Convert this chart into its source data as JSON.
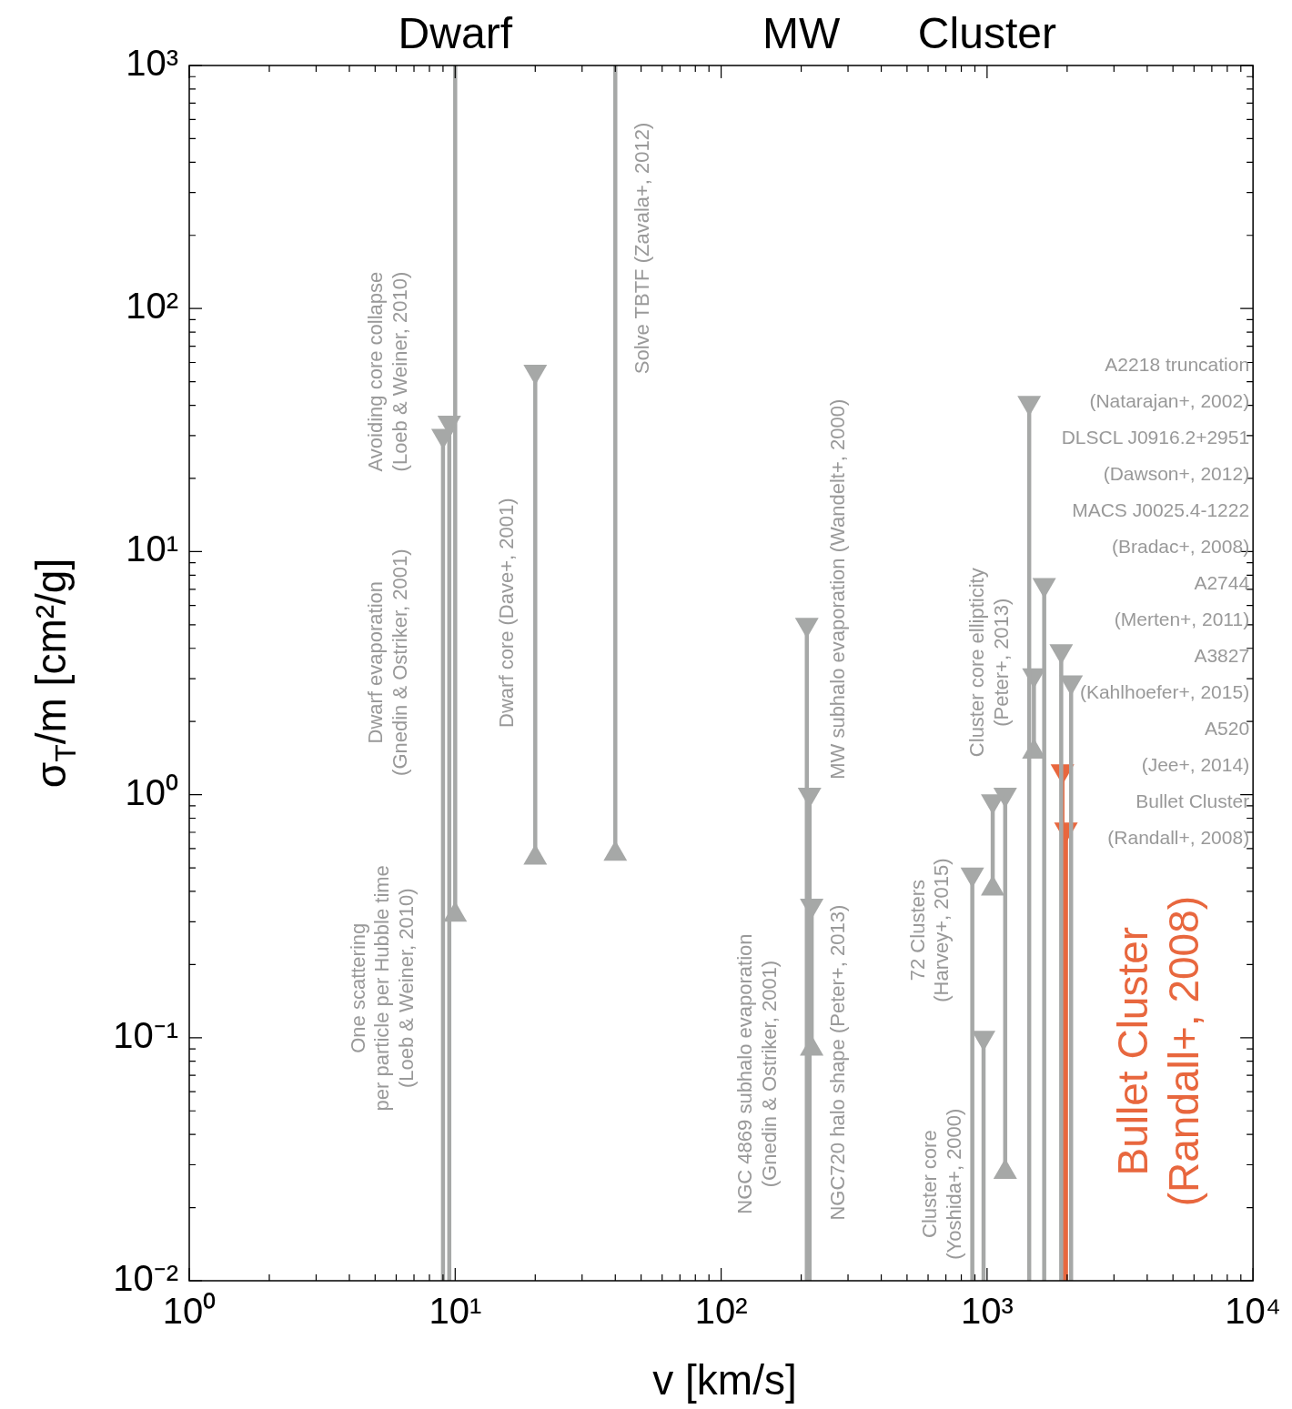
{
  "chart_data": {
    "type": "line",
    "xlabel": "v [km/s]",
    "ylabel": "σ$_{T}$/m [cm²/g]",
    "log": "xy",
    "grid": false,
    "marker": "triangle",
    "xlim": [
      1,
      10000
    ],
    "ylim": [
      0.01,
      1000
    ],
    "xticks": [
      {
        "value": 1,
        "label": "10⁰"
      },
      {
        "value": 2,
        "label": null
      },
      {
        "value": 3,
        "label": null
      },
      {
        "value": 4,
        "label": null
      },
      {
        "value": 5,
        "label": null
      },
      {
        "value": 6,
        "label": null
      },
      {
        "value": 7,
        "label": null
      },
      {
        "value": 8,
        "label": null
      },
      {
        "value": 9,
        "label": null
      },
      {
        "value": 10,
        "label": "10¹"
      },
      {
        "value": 20,
        "label": null
      },
      {
        "value": 30,
        "label": null
      },
      {
        "value": 40,
        "label": null
      },
      {
        "value": 50,
        "label": null
      },
      {
        "value": 60,
        "label": null
      },
      {
        "value": 70,
        "label": null
      },
      {
        "value": 80,
        "label": null
      },
      {
        "value": 90,
        "label": null
      },
      {
        "value": 100,
        "label": "10²"
      },
      {
        "value": 200,
        "label": null
      },
      {
        "value": 300,
        "label": null
      },
      {
        "value": 400,
        "label": null
      },
      {
        "value": 500,
        "label": null
      },
      {
        "value": 600,
        "label": null
      },
      {
        "value": 700,
        "label": null
      },
      {
        "value": 800,
        "label": null
      },
      {
        "value": 900,
        "label": null
      },
      {
        "value": 1000,
        "label": "10³"
      },
      {
        "value": 2000,
        "label": null
      },
      {
        "value": 3000,
        "label": null
      },
      {
        "value": 4000,
        "label": null
      },
      {
        "value": 5000,
        "label": null
      },
      {
        "value": 6000,
        "label": null
      },
      {
        "value": 7000,
        "label": null
      },
      {
        "value": 8000,
        "label": null
      },
      {
        "value": 9000,
        "label": null
      },
      {
        "value": 10000,
        "label": "10⁴"
      }
    ],
    "yticks": [
      {
        "value": 0.01,
        "label": "10⁻²"
      },
      {
        "value": 0.02,
        "label": null
      },
      {
        "value": 0.03,
        "label": null
      },
      {
        "value": 0.04,
        "label": null
      },
      {
        "value": 0.05,
        "label": null
      },
      {
        "value": 0.06,
        "label": null
      },
      {
        "value": 0.07,
        "label": null
      },
      {
        "value": 0.08,
        "label": null
      },
      {
        "value": 0.09,
        "label": null
      },
      {
        "value": 0.1,
        "label": "10⁻¹"
      },
      {
        "value": 0.2,
        "label": null
      },
      {
        "value": 0.3,
        "label": null
      },
      {
        "value": 0.4,
        "label": null
      },
      {
        "value": 0.5,
        "label": null
      },
      {
        "value": 0.6,
        "label": null
      },
      {
        "value": 0.7,
        "label": null
      },
      {
        "value": 0.8,
        "label": null
      },
      {
        "value": 0.9,
        "label": null
      },
      {
        "value": 1,
        "label": "10⁰"
      },
      {
        "value": 2,
        "label": null
      },
      {
        "value": 3,
        "label": null
      },
      {
        "value": 4,
        "label": null
      },
      {
        "value": 5,
        "label": null
      },
      {
        "value": 6,
        "label": null
      },
      {
        "value": 7,
        "label": null
      },
      {
        "value": 8,
        "label": null
      },
      {
        "value": 9,
        "label": null
      },
      {
        "value": 10,
        "label": "10¹"
      },
      {
        "value": 20,
        "label": null
      },
      {
        "value": 30,
        "label": null
      },
      {
        "value": 40,
        "label": null
      },
      {
        "value": 50,
        "label": null
      },
      {
        "value": 60,
        "label": null
      },
      {
        "value": 70,
        "label": null
      },
      {
        "value": 80,
        "label": null
      },
      {
        "value": 90,
        "label": null
      },
      {
        "value": 100,
        "label": "10²"
      },
      {
        "value": 200,
        "label": null
      },
      {
        "value": 300,
        "label": null
      },
      {
        "value": 400,
        "label": null
      },
      {
        "value": 500,
        "label": null
      },
      {
        "value": 600,
        "label": null
      },
      {
        "value": 700,
        "label": null
      },
      {
        "value": 800,
        "label": null
      },
      {
        "value": 900,
        "label": null
      },
      {
        "value": 1000,
        "label": "10³"
      }
    ],
    "series": [
      {
        "color": "#a6a8a7",
        "x": [
          9,
          9
        ],
        "values": [
          0.01,
          30
        ]
      },
      {
        "color": "#a6a8a7",
        "x": [
          9.5,
          9.5
        ],
        "values": [
          0.01,
          34
        ]
      },
      {
        "color": "#a6a8a7",
        "x": [
          10,
          10
        ],
        "values": [
          0.32,
          1000
        ]
      },
      {
        "color": "#a6a8a7",
        "x": [
          20,
          20
        ],
        "values": [
          0.55,
          55
        ]
      },
      {
        "color": "#a6a8a7",
        "x": [
          40,
          40
        ],
        "values": [
          0.57,
          1000
        ]
      },
      {
        "color": "#a6a8a7",
        "x": [
          210,
          210
        ],
        "values": [
          0.01,
          5
        ]
      },
      {
        "color": "#a6a8a7",
        "x": [
          215,
          215
        ],
        "values": [
          0.01,
          1
        ]
      },
      {
        "color": "#a6a8a7",
        "x": [
          219,
          219
        ],
        "values": [
          0.09,
          0.35
        ]
      },
      {
        "color": "#a6a8a7",
        "x": [
          880,
          880
        ],
        "values": [
          0.01,
          0.47
        ]
      },
      {
        "color": "#a6a8a7",
        "x": [
          970,
          970
        ],
        "values": [
          0.01,
          0.1
        ]
      },
      {
        "color": "#a6a8a7",
        "x": [
          1050,
          1050
        ],
        "values": [
          0.41,
          0.94
        ]
      },
      {
        "color": "#a6a8a7",
        "x": [
          1170,
          1170
        ],
        "values": [
          0.028,
          1
        ]
      },
      {
        "color": "#a6a8a7",
        "x": [
          1440,
          1440
        ],
        "values": [
          0.01,
          41
        ]
      },
      {
        "color": "#a6a8a7",
        "x": [
          1500,
          1500
        ],
        "values": [
          1.5,
          3.1
        ]
      },
      {
        "color": "#a6a8a7",
        "x": [
          1640,
          1640
        ],
        "values": [
          0.01,
          7.3
        ]
      },
      {
        "color": "#a6a8a7",
        "x": [
          1900,
          1900
        ],
        "values": [
          0.01,
          3.9
        ]
      },
      {
        "color": "#a6a8a7",
        "x": [
          2070,
          2070
        ],
        "values": [
          0.01,
          2.9
        ]
      },
      {
        "color": "#e8673e",
        "x": [
          1920,
          1920
        ],
        "values": [
          0.01,
          1.25
        ]
      },
      {
        "color": "#e8673e",
        "x": [
          1980,
          1980
        ],
        "values": [
          0.01,
          0.72
        ]
      }
    ],
    "annotations": [
      "Dwarf",
      "MW",
      "Cluster",
      "Avoiding core collapse\n(Loeb & Weiner, 2010)",
      "Dwarf evaporation\n(Gnedin & Ostriker, 2001)",
      "One scattering\nper particle per Hubble time\n(Loeb & Weiner, 2010)",
      "Dwarf core (Dave+, 2001)",
      "Solve TBTF (Zavala+, 2012)",
      "MW subhalo evaporation (Wandelt+, 2000)",
      "NGC 4869 subhalo evaporation\n(Gnedin & Ostriker, 2001)",
      "NGC720 halo shape (Peter+, 2013)",
      "72 Clusters\n(Harvey+, 2015)",
      "Cluster core\n(Yoshida+, 2000)",
      "Cluster core ellipticity\n(Peter+, 2013)",
      "Bullet Cluster\n(Randall+, 2008)",
      "A2218 truncation\n(Natarajan+, 2002)",
      "DLSCL J0916.2+2951\n(Dawson+, 2012)",
      "MACS J0025.4-1222\n(Bradac+, 2008)",
      "A2744\n(Merten+, 2011)",
      "A3827\n(Kahlhoefer+, 2015)",
      "A520\n(Jee+, 2014)",
      "Bullet Cluster\n(Randall+, 2008)"
    ]
  }
}
